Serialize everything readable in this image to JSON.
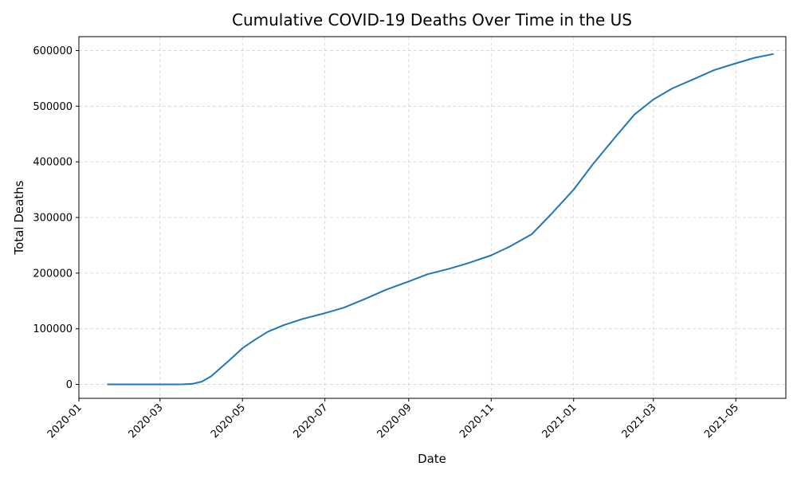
{
  "chart_data": {
    "type": "line",
    "title": "Cumulative COVID-19 Deaths Over Time in the US",
    "xlabel": "Date",
    "ylabel": "Total Deaths",
    "xlim": [
      "2020-01-01",
      "2021-06-07"
    ],
    "ylim": [
      -25000,
      625000
    ],
    "x_ticks": [
      "2020-01",
      "2020-03",
      "2020-05",
      "2020-07",
      "2020-09",
      "2020-11",
      "2021-01",
      "2021-03",
      "2021-05"
    ],
    "y_ticks": [
      0,
      100000,
      200000,
      300000,
      400000,
      500000,
      600000
    ],
    "grid": true,
    "colors": {
      "line": "#1f77b4"
    },
    "series": [
      {
        "x": [
          "2020-01-22",
          "2020-02-15",
          "2020-03-10",
          "2020-03-18",
          "2020-03-25",
          "2020-04-01",
          "2020-04-08",
          "2020-04-15",
          "2020-04-22",
          "2020-05-01",
          "2020-05-10",
          "2020-05-20",
          "2020-06-01",
          "2020-06-15",
          "2020-07-01",
          "2020-07-15",
          "2020-08-01",
          "2020-08-15",
          "2020-09-01",
          "2020-09-15",
          "2020-10-01",
          "2020-10-15",
          "2020-11-01",
          "2020-11-15",
          "2020-12-01",
          "2020-12-15",
          "2021-01-01",
          "2021-01-15",
          "2021-02-01",
          "2021-02-15",
          "2021-03-01",
          "2021-03-15",
          "2021-04-01",
          "2021-04-15",
          "2021-05-01",
          "2021-05-15",
          "2021-05-29"
        ],
        "values": [
          0,
          0,
          30,
          150,
          1000,
          5000,
          15000,
          30000,
          45000,
          65000,
          80000,
          95000,
          107000,
          118000,
          128000,
          138000,
          155000,
          170000,
          185000,
          198000,
          208000,
          218000,
          232000,
          248000,
          270000,
          305000,
          350000,
          395000,
          445000,
          485000,
          512000,
          532000,
          550000,
          565000,
          577000,
          587000,
          594000
        ]
      }
    ]
  }
}
